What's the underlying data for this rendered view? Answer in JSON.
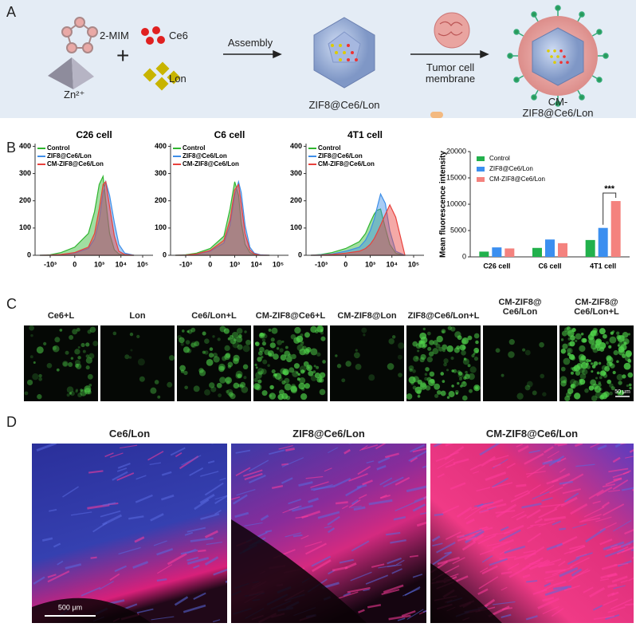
{
  "panel_a": {
    "label": "A",
    "linker": "2-MIM",
    "metal": "Zn²⁺",
    "plus": "+",
    "drug_1": "Ce6",
    "drug_2": "Lon",
    "step_1": "Assembly",
    "product_1": "ZIF8@Ce6/Lon",
    "step_2": "Tumor cell\nmembrane",
    "product_2": "CM-ZIF8@Ce6/Lon"
  },
  "panel_b": {
    "label": "B"
  },
  "chart_data": [
    {
      "type": "area",
      "title": "C26 cell",
      "xscale": "biexponential",
      "legend": "upper left",
      "x": [
        -3000,
        -1000,
        -300,
        0,
        300,
        600,
        1000,
        1500,
        2000,
        3000,
        5000,
        8000,
        15000,
        40000
      ],
      "series": [
        {
          "name": "Control",
          "color": "#2fb52f",
          "values": [
            0,
            2,
            10,
            30,
            80,
            160,
            260,
            290,
            200,
            80,
            20,
            5,
            1,
            0
          ]
        },
        {
          "name": "ZIF8@Ce6/Lon",
          "color": "#3d8ee8",
          "values": [
            0,
            1,
            3,
            8,
            25,
            60,
            130,
            230,
            270,
            220,
            120,
            40,
            8,
            0
          ]
        },
        {
          "name": "CM-ZIF8@Ce6/Lon",
          "color": "#e8413c",
          "values": [
            0,
            1,
            3,
            10,
            30,
            80,
            170,
            260,
            270,
            180,
            70,
            15,
            3,
            0
          ]
        }
      ],
      "xlim": [
        -5000,
        300000
      ],
      "xticks": [
        {
          "value": -1000,
          "label": "-10³"
        },
        0,
        {
          "value": 1000,
          "label": "10³"
        },
        {
          "value": 10000,
          "label": "10⁴"
        },
        {
          "value": 100000,
          "label": "10⁵"
        }
      ],
      "ylim": [
        0,
        410
      ],
      "yticks": [
        0,
        100,
        200,
        300,
        400
      ]
    },
    {
      "type": "area",
      "title": "C6 cell",
      "xscale": "biexponential",
      "legend": "upper left",
      "x": [
        -3000,
        -1000,
        -300,
        0,
        300,
        600,
        1000,
        1500,
        2000,
        3000,
        5000,
        8000,
        15000,
        40000
      ],
      "series": [
        {
          "name": "Control",
          "color": "#2fb52f",
          "values": [
            0,
            2,
            8,
            25,
            70,
            170,
            270,
            220,
            120,
            40,
            10,
            3,
            1,
            0
          ]
        },
        {
          "name": "ZIF8@Ce6/Lon",
          "color": "#3d8ee8",
          "values": [
            0,
            1,
            4,
            15,
            45,
            110,
            220,
            270,
            230,
            110,
            30,
            8,
            2,
            0
          ]
        },
        {
          "name": "CM-ZIF8@Ce6/Lon",
          "color": "#e8413c",
          "values": [
            0,
            1,
            5,
            18,
            55,
            130,
            240,
            260,
            190,
            80,
            20,
            5,
            1,
            0
          ]
        }
      ],
      "xlim": [
        -5000,
        300000
      ],
      "xticks": [
        {
          "value": -1000,
          "label": "-10³"
        },
        0,
        {
          "value": 1000,
          "label": "10³"
        },
        {
          "value": 10000,
          "label": "10⁴"
        },
        {
          "value": 100000,
          "label": "10⁵"
        }
      ],
      "ylim": [
        0,
        410
      ],
      "yticks": [
        0,
        100,
        200,
        300,
        400
      ]
    },
    {
      "type": "area",
      "title": "4T1 cell",
      "xscale": "biexponential",
      "legend": "upper left",
      "x": [
        -3000,
        -1000,
        -300,
        0,
        300,
        600,
        1000,
        1500,
        2000,
        3000,
        5000,
        8000,
        15000,
        40000
      ],
      "series": [
        {
          "name": "Control",
          "color": "#2fb52f",
          "values": [
            0,
            3,
            10,
            25,
            50,
            80,
            120,
            150,
            165,
            170,
            100,
            40,
            8,
            0
          ]
        },
        {
          "name": "ZIF8@Ce6/Lon",
          "color": "#3d8ee8",
          "values": [
            0,
            2,
            5,
            15,
            30,
            55,
            90,
            130,
            170,
            225,
            190,
            90,
            15,
            0
          ]
        },
        {
          "name": "CM-ZIF8@Ce6/Lon",
          "color": "#e8413c",
          "values": [
            0,
            1,
            3,
            8,
            15,
            25,
            40,
            60,
            80,
            110,
            150,
            185,
            140,
            0
          ]
        }
      ],
      "xlim": [
        -5000,
        300000
      ],
      "xticks": [
        {
          "value": -1000,
          "label": "-10³"
        },
        0,
        {
          "value": 1000,
          "label": "10³"
        },
        {
          "value": 10000,
          "label": "10⁴"
        },
        {
          "value": 100000,
          "label": "10⁵"
        }
      ],
      "ylim": [
        0,
        410
      ],
      "yticks": [
        0,
        100,
        200,
        300,
        400
      ]
    },
    {
      "type": "bar",
      "ylabel": "Mean fluorescence intensity",
      "legend": "upper left",
      "annotation": "***",
      "categories": [
        "C26 cell",
        "C6 cell",
        "4T1 cell"
      ],
      "series": [
        {
          "name": "Control",
          "color": "#22b14c",
          "values": [
            1000,
            1700,
            3200
          ]
        },
        {
          "name": "ZIF8@Ce6/Lon",
          "color": "#3b8ff0",
          "values": [
            1800,
            3300,
            5500
          ]
        },
        {
          "name": "CM-ZIF8@Ce6/Lon",
          "color": "#f4827e",
          "values": [
            1600,
            2600,
            10600
          ]
        }
      ],
      "ylim": [
        0,
        20000
      ],
      "yticks": [
        0,
        5000,
        10000,
        15000,
        20000
      ]
    }
  ],
  "panel_c": {
    "label": "C",
    "images": [
      {
        "label": "Ce6+L"
      },
      {
        "label": "Lon"
      },
      {
        "label": "Ce6/Lon+L"
      },
      {
        "label": "CM-ZIF8@Ce6+L"
      },
      {
        "label": "CM-ZIF8@Lon"
      },
      {
        "label": "ZIF8@Ce6/Lon+L"
      },
      {
        "label": "CM-ZIF8@\nCe6/Lon"
      },
      {
        "label": "CM-ZIF8@\nCe6/Lon+L"
      }
    ],
    "scale_bar": "50 μm"
  },
  "panel_d": {
    "label": "D",
    "images": [
      {
        "label": "Ce6/Lon"
      },
      {
        "label": "ZIF8@Ce6/Lon"
      },
      {
        "label": "CM-ZIF8@Ce6/Lon"
      }
    ],
    "scale_bar": "500 μm"
  }
}
